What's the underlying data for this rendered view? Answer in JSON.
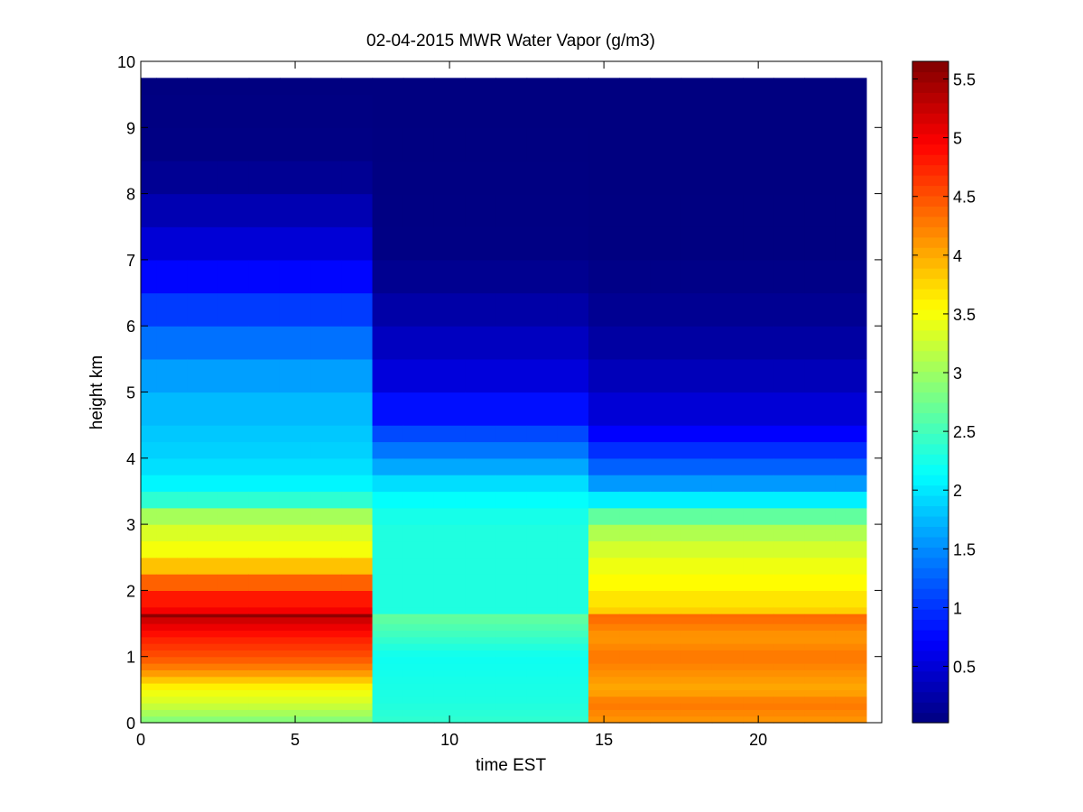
{
  "chart_data": {
    "type": "heatmap",
    "title": "02-04-2015 MWR Water Vapor (g/m3)",
    "xlabel": "time EST",
    "ylabel": "height km",
    "xlim": [
      0,
      24
    ],
    "ylim": [
      0,
      10
    ],
    "xticks": [
      0,
      5,
      10,
      15,
      20
    ],
    "yticks": [
      0,
      1,
      2,
      3,
      4,
      5,
      6,
      7,
      8,
      9,
      10
    ],
    "colormap": "jet",
    "colorbar": {
      "range": [
        0.02,
        5.65
      ],
      "ticks": [
        0.5,
        1,
        1.5,
        2,
        2.5,
        3,
        3.5,
        4,
        4.5,
        5,
        5.5
      ],
      "tick_labels": [
        "0.5",
        "1",
        "1.5",
        "2",
        "2.5",
        "3",
        "3.5",
        "4",
        "4.5",
        "5",
        "5.5"
      ]
    },
    "grid": false,
    "x": [
      0,
      1,
      2,
      3,
      4,
      5,
      6,
      7,
      8,
      9,
      10,
      11,
      12,
      13,
      14,
      15,
      16,
      17,
      18,
      19,
      20,
      21,
      22,
      23
    ],
    "x_cell_width": 1,
    "height_levels_km": [
      0,
      0.1,
      0.2,
      0.3,
      0.4,
      0.5,
      0.6,
      0.7,
      0.8,
      0.9,
      1.0,
      1.1,
      1.2,
      1.3,
      1.4,
      1.5,
      1.6,
      1.65,
      1.75,
      2.0,
      2.25,
      2.5,
      2.75,
      3.0,
      3.25,
      3.5,
      3.75,
      4.0,
      4.25,
      4.5,
      5.0,
      5.5,
      6.0,
      6.5,
      7.0,
      7.5,
      8.0,
      8.5,
      9.0,
      9.5,
      9.75
    ],
    "profiles": {
      "night_0_7": [
        [
          0.0,
          2.8
        ],
        [
          0.3,
          3.3
        ],
        [
          0.5,
          3.5
        ],
        [
          0.8,
          4.2
        ],
        [
          1.0,
          4.5
        ],
        [
          1.3,
          4.8
        ],
        [
          1.55,
          5.2
        ],
        [
          1.62,
          5.6
        ],
        [
          1.7,
          5.0
        ],
        [
          2.0,
          4.7
        ],
        [
          2.3,
          4.0
        ],
        [
          2.6,
          3.5
        ],
        [
          3.1,
          3.2
        ],
        [
          3.2,
          2.6
        ],
        [
          3.6,
          2.1
        ],
        [
          4.0,
          1.9
        ],
        [
          4.5,
          1.8
        ],
        [
          5.0,
          1.7
        ],
        [
          5.5,
          1.5
        ],
        [
          6.0,
          1.2
        ],
        [
          6.5,
          0.9
        ],
        [
          7.0,
          0.6
        ],
        [
          7.5,
          0.4
        ],
        [
          8.0,
          0.2
        ],
        [
          8.5,
          0.05
        ],
        [
          9.75,
          0.02
        ]
      ],
      "morning_8_14": [
        [
          0.0,
          2.4
        ],
        [
          0.3,
          2.3
        ],
        [
          1.0,
          2.2
        ],
        [
          1.62,
          2.7
        ],
        [
          1.7,
          2.3
        ],
        [
          2.5,
          2.3
        ],
        [
          3.0,
          2.3
        ],
        [
          3.5,
          2.1
        ],
        [
          4.0,
          1.5
        ],
        [
          4.5,
          1.0
        ],
        [
          5.0,
          0.6
        ],
        [
          6.0,
          0.3
        ],
        [
          7.0,
          0.05
        ],
        [
          9.75,
          0.02
        ]
      ],
      "afternoon_15_23": [
        [
          0.0,
          4.1
        ],
        [
          0.3,
          4.3
        ],
        [
          0.5,
          4.0
        ],
        [
          1.0,
          4.3
        ],
        [
          1.3,
          4.1
        ],
        [
          1.62,
          4.4
        ],
        [
          1.7,
          3.8
        ],
        [
          2.0,
          3.6
        ],
        [
          2.5,
          3.4
        ],
        [
          3.0,
          3.0
        ],
        [
          3.3,
          2.2
        ],
        [
          3.6,
          1.6
        ],
        [
          4.0,
          1.1
        ],
        [
          4.5,
          0.6
        ],
        [
          5.0,
          0.4
        ],
        [
          6.0,
          0.15
        ],
        [
          7.0,
          0.03
        ],
        [
          9.75,
          0.02
        ]
      ]
    }
  }
}
